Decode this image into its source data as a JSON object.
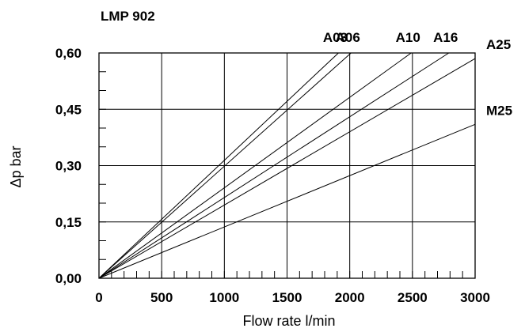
{
  "chart_data": {
    "type": "line",
    "title": "LMP 902",
    "xlabel": "Flow rate l/min",
    "ylabel": "Δp bar",
    "xlim": [
      0,
      3000
    ],
    "ylim": [
      0,
      0.6
    ],
    "xticks": [
      "0",
      "500",
      "1000",
      "1500",
      "2000",
      "2500",
      "3000"
    ],
    "yticks": [
      "0,00",
      "0,15",
      "0,30",
      "0,45",
      "0,60"
    ],
    "grid": true,
    "series": [
      {
        "name": "A03",
        "x": [
          0,
          1910
        ],
        "y": [
          0,
          0.6
        ]
      },
      {
        "name": "A06",
        "x": [
          0,
          2010
        ],
        "y": [
          0,
          0.6
        ]
      },
      {
        "name": "A10",
        "x": [
          0,
          2490
        ],
        "y": [
          0,
          0.6
        ]
      },
      {
        "name": "A16",
        "x": [
          0,
          2790
        ],
        "y": [
          0,
          0.6
        ]
      },
      {
        "name": "A25",
        "x": [
          0,
          3000
        ],
        "y": [
          0,
          0.585
        ]
      },
      {
        "name": "M25",
        "x": [
          0,
          3000
        ],
        "y": [
          0,
          0.41
        ]
      }
    ]
  }
}
